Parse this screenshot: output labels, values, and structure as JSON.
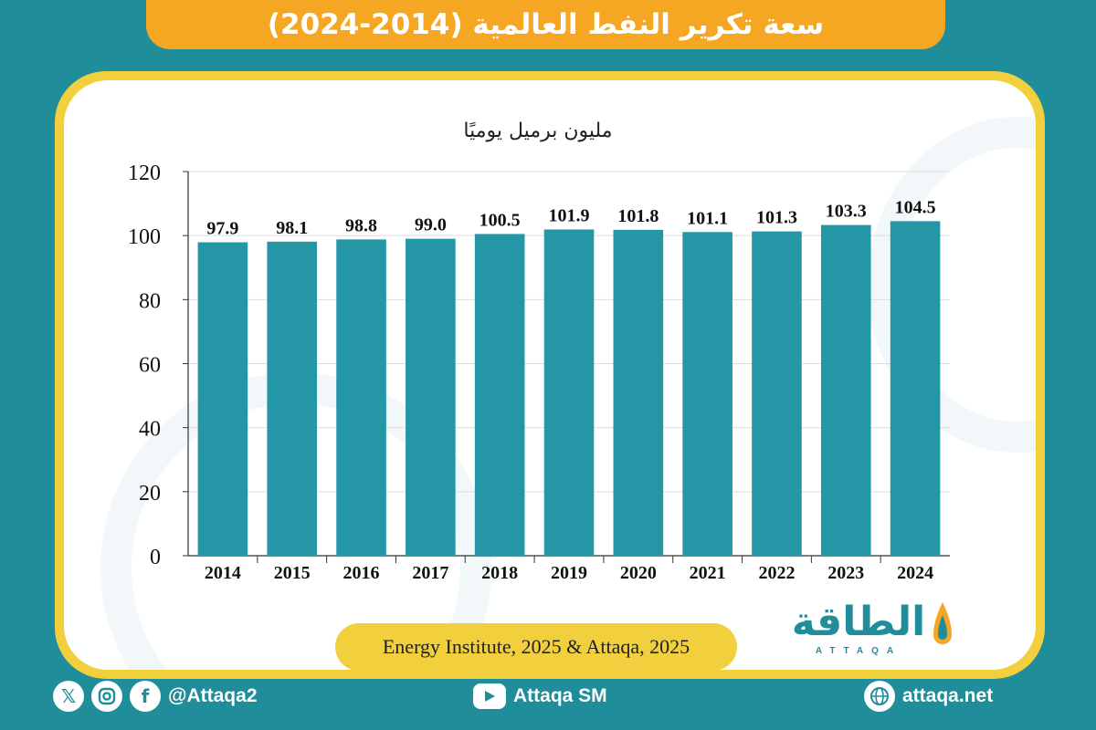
{
  "title": "سعة تكرير النفط العالمية (2014-2024)",
  "source": "Energy Institute, 2025 & Attaqa, 2025",
  "logo": {
    "name": "الطاقة",
    "sub": "ATTAQA"
  },
  "footer": {
    "social_handle": "@Attaqa2",
    "youtube_label": "Attaqa SM",
    "website": "attaqa.net"
  },
  "colors": {
    "bar": "#2496a6",
    "accent": "#f5a623",
    "frame": "#f2cf3c",
    "background": "#1f8d9a"
  },
  "chart_data": {
    "type": "bar",
    "ylabel": "مليون برميل يوميًا",
    "categories": [
      "2014",
      "2015",
      "2016",
      "2017",
      "2018",
      "2019",
      "2020",
      "2021",
      "2022",
      "2023",
      "2024"
    ],
    "values": [
      97.9,
      98.1,
      98.8,
      99.0,
      100.5,
      101.9,
      101.8,
      101.1,
      101.3,
      103.3,
      104.5
    ],
    "value_labels": [
      "97.9",
      "98.1",
      "98.8",
      "99.0",
      "100.5",
      "101.9",
      "101.8",
      "101.1",
      "101.3",
      "103.3",
      "104.5"
    ],
    "ylim": [
      0,
      120
    ],
    "yticks": [
      0,
      20,
      40,
      60,
      80,
      100,
      120
    ],
    "grid": true
  }
}
